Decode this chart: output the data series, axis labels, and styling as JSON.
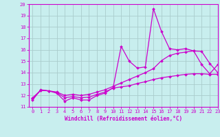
{
  "xlabel": "Windchill (Refroidissement éolien,°C)",
  "xlim": [
    -0.5,
    23
  ],
  "ylim": [
    11,
    20
  ],
  "yticks": [
    11,
    12,
    13,
    14,
    15,
    16,
    17,
    18,
    19,
    20
  ],
  "xticks": [
    0,
    1,
    2,
    3,
    4,
    5,
    6,
    7,
    8,
    9,
    10,
    11,
    12,
    13,
    14,
    15,
    16,
    17,
    18,
    19,
    20,
    21,
    22,
    23
  ],
  "bg_color": "#c8eeee",
  "line_color": "#cc00cc",
  "grid_color": "#aacccc",
  "line1_x": [
    0,
    1,
    2,
    3,
    4,
    5,
    6,
    7,
    8,
    9,
    10,
    11,
    12,
    13,
    14,
    15,
    16,
    17,
    18,
    19,
    20,
    21,
    22,
    23
  ],
  "line1_y": [
    11.6,
    12.5,
    12.4,
    12.2,
    11.5,
    11.8,
    11.6,
    11.6,
    12.0,
    12.2,
    12.7,
    16.3,
    15.0,
    14.4,
    14.5,
    19.6,
    17.6,
    16.1,
    16.0,
    16.1,
    15.9,
    14.7,
    13.9,
    14.7
  ],
  "line2_x": [
    0,
    1,
    2,
    3,
    4,
    5,
    6,
    7,
    8,
    9,
    10,
    11,
    12,
    13,
    14,
    15,
    16,
    17,
    18,
    19,
    20,
    21,
    22,
    23
  ],
  "line2_y": [
    11.8,
    12.45,
    12.4,
    12.3,
    12.0,
    12.1,
    12.0,
    12.1,
    12.3,
    12.5,
    12.8,
    13.1,
    13.4,
    13.7,
    14.0,
    14.35,
    15.05,
    15.5,
    15.7,
    15.8,
    15.9,
    15.85,
    14.8,
    14.0
  ],
  "line3_x": [
    0,
    1,
    2,
    3,
    4,
    5,
    6,
    7,
    8,
    9,
    10,
    11,
    12,
    13,
    14,
    15,
    16,
    17,
    18,
    19,
    20,
    21,
    22,
    23
  ],
  "line3_y": [
    11.7,
    12.45,
    12.4,
    12.25,
    11.8,
    11.9,
    11.8,
    11.85,
    12.1,
    12.3,
    12.65,
    12.75,
    12.85,
    13.05,
    13.2,
    13.4,
    13.55,
    13.65,
    13.75,
    13.85,
    13.9,
    13.9,
    13.85,
    13.85
  ]
}
